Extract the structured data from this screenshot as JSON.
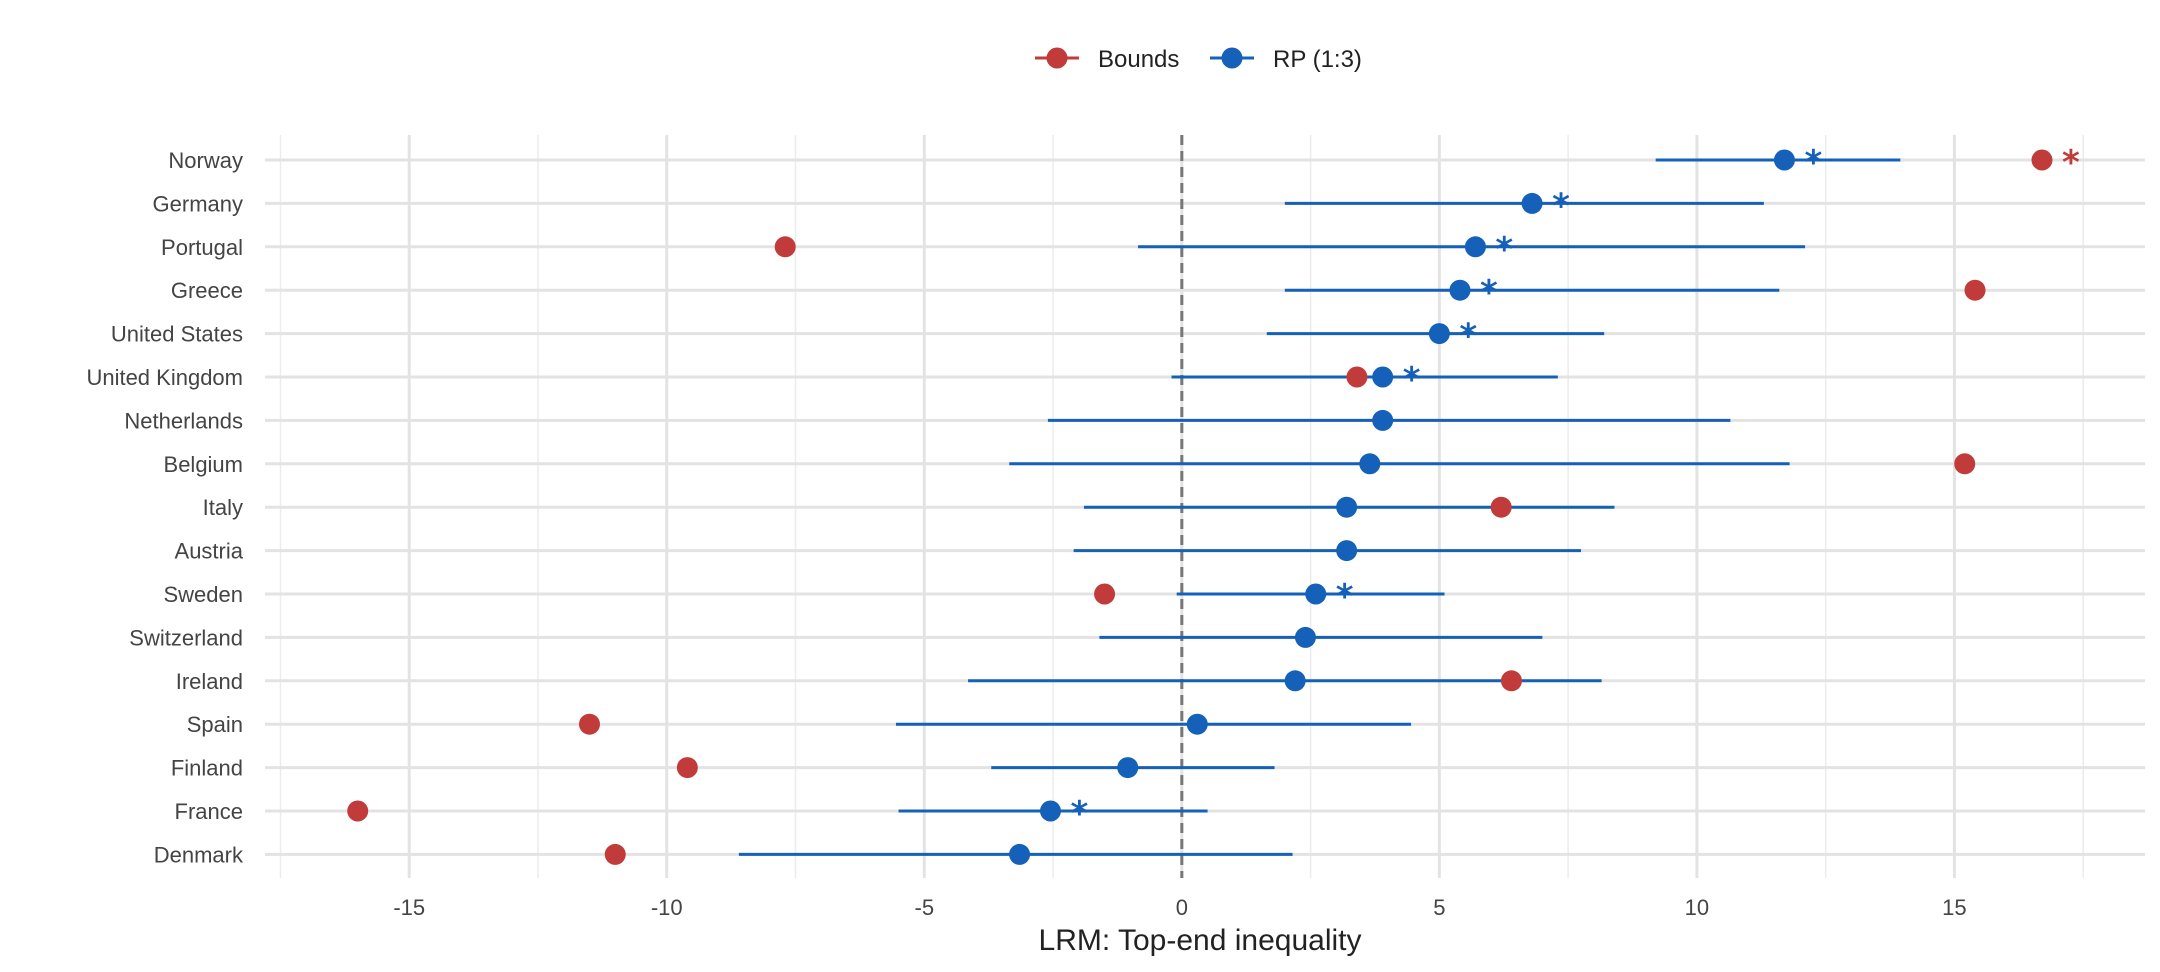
{
  "chart_data": {
    "type": "scatter",
    "xlabel": "LRM: Top-end inequality",
    "ylabel": "",
    "xlim": [
      -17.8,
      18.7
    ],
    "x_ticks": [
      -15,
      -10,
      -5,
      0,
      5,
      10,
      15
    ],
    "x_tick_labels": [
      "-15",
      "-10",
      "-5",
      "0",
      "5",
      "10",
      "15"
    ],
    "reference_line": 0,
    "grid": true,
    "legend_position": "top",
    "categories": [
      "Norway",
      "Germany",
      "Portugal",
      "Greece",
      "United States",
      "United Kingdom",
      "Netherlands",
      "Belgium",
      "Italy",
      "Austria",
      "Sweden",
      "Switzerland",
      "Ireland",
      "Spain",
      "Finland",
      "France",
      "Denmark"
    ],
    "series": [
      {
        "name": "Bounds",
        "color": "#c13b3b",
        "values": [
          16.7,
          null,
          -7.7,
          15.4,
          null,
          3.4,
          null,
          15.2,
          6.2,
          null,
          -1.5,
          null,
          6.4,
          -11.5,
          -9.6,
          -16.0,
          -11.0
        ],
        "significant": [
          true,
          false,
          false,
          false,
          false,
          false,
          false,
          false,
          false,
          false,
          false,
          false,
          false,
          false,
          false,
          false,
          false
        ]
      },
      {
        "name": "RP (1:3)",
        "color": "#1560b8",
        "values": [
          11.7,
          6.8,
          5.7,
          5.4,
          5.0,
          3.9,
          3.9,
          3.65,
          3.2,
          3.2,
          2.6,
          2.4,
          2.2,
          0.3,
          -1.05,
          -2.55,
          -3.15
        ],
        "lower": [
          9.2,
          2.0,
          -0.85,
          2.0,
          1.65,
          -0.2,
          -2.6,
          -3.35,
          -1.9,
          -2.1,
          -0.1,
          -1.6,
          -4.15,
          -5.55,
          -3.7,
          -5.5,
          -8.6
        ],
        "upper": [
          13.95,
          11.3,
          12.1,
          11.6,
          8.2,
          7.3,
          10.65,
          11.8,
          8.4,
          7.75,
          5.1,
          7.0,
          8.15,
          4.45,
          1.8,
          0.5,
          2.15
        ],
        "significant": [
          true,
          true,
          true,
          true,
          true,
          true,
          false,
          false,
          false,
          false,
          true,
          false,
          false,
          false,
          false,
          true,
          false
        ]
      }
    ],
    "significance_marker": "*"
  }
}
